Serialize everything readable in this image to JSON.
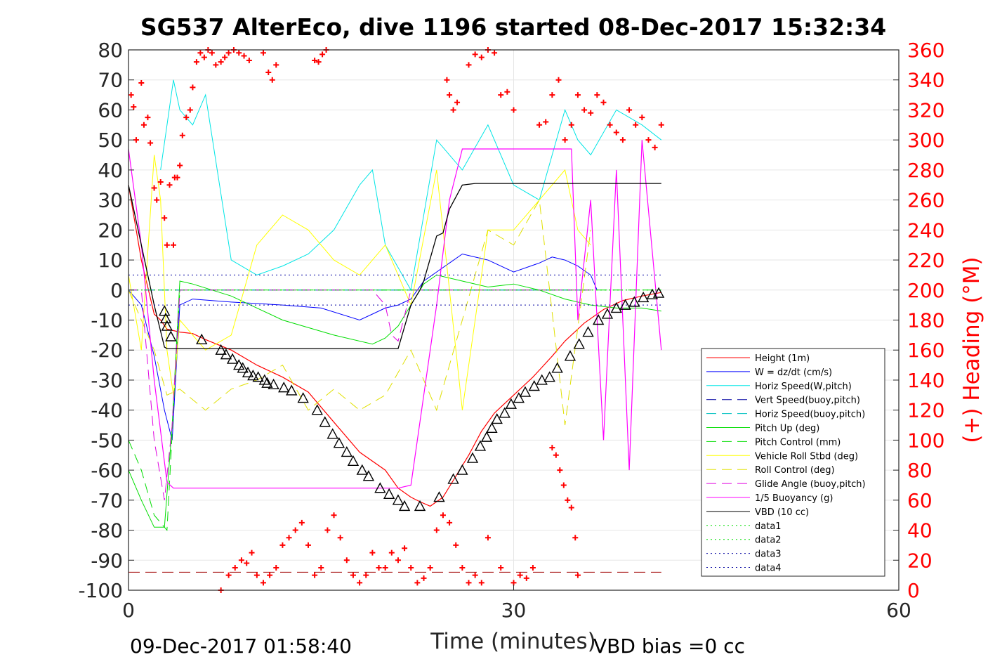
{
  "colors": {
    "height": "#ff0000",
    "w": "#0000ff",
    "horiz_w": "#00e5e5",
    "vert_buoy": "#0000a0",
    "horiz_buoy": "#00c0c0",
    "pitch": "#00dd00",
    "pitch_ctrl": "#00dd00",
    "roll": "#ffff00",
    "roll_ctrl": "#e0e000",
    "glide": "#e000e0",
    "buoy": "#ff00ff",
    "vbd": "#000000",
    "heading": "#ff0000",
    "dashed_red": "#a00000"
  },
  "chart_data": {
    "type": "line",
    "title": "SG537 AlterEco, dive 1196 started 08-Dec-2017 15:32:34",
    "xlabel": "Time (minutes)",
    "ylabel_right": "(+) Heading (°M)",
    "xlim": [
      0,
      60
    ],
    "ylim": [
      -100,
      80
    ],
    "ylim_right": [
      0,
      360
    ],
    "x_ticks": [
      "0",
      "30",
      "60"
    ],
    "y_ticks": [
      "80",
      "70",
      "60",
      "50",
      "40",
      "30",
      "20",
      "10",
      "0",
      "-10",
      "-20",
      "-30",
      "-40",
      "-50",
      "-60",
      "-70",
      "-80",
      "-90",
      "-100"
    ],
    "y_ticks_right": [
      "360",
      "340",
      "320",
      "300",
      "280",
      "260",
      "240",
      "220",
      "200",
      "180",
      "160",
      "140",
      "120",
      "100",
      "80",
      "60",
      "40",
      "20",
      "0"
    ],
    "grid": true,
    "legend_position": "bottom-right",
    "footer_left": "09-Dec-2017 01:58:40",
    "footer_right": "VBD bias =0 cc",
    "legend": [
      "Height (1m)",
      "W = dz/dt (cm/s)",
      "Horiz Speed(W,pitch)",
      "Vert Speed(buoy,pitch)",
      "Horiz Speed(buoy,pitch)",
      "Pitch Up (deg)",
      "Pitch Control (mm)",
      "Vehicle Roll Stbd (deg)",
      "Roll Control (deg)",
      "Glide Angle (buoy,pitch)",
      "1/5 Buoyancy (g)",
      "VBD (10 cc)",
      "data1",
      "data2",
      "data3",
      "data4"
    ],
    "series": [
      {
        "name": "Height (1m)",
        "x": [
          0,
          1,
          2,
          2.5,
          3,
          3.5,
          4,
          5,
          6,
          8,
          10,
          12,
          14,
          16,
          18,
          20,
          21,
          22,
          22.7,
          23.5,
          24.5,
          25.5,
          26.5,
          27.5,
          28.5,
          30,
          31.5,
          33,
          34,
          35.5,
          37,
          38.5,
          40,
          41.5
        ],
        "values": [
          35,
          10,
          -8,
          -10,
          -13,
          -13.5,
          -14,
          -14.5,
          -16.5,
          -20,
          -25,
          -29,
          -34,
          -44,
          -54,
          -60,
          -66,
          -69,
          -70.5,
          -72,
          -69,
          -62,
          -55,
          -47,
          -41,
          -35,
          -29,
          -22,
          -17,
          -11,
          -6.5,
          -3.5,
          -2,
          -0.8
        ]
      },
      {
        "name": "W = dz/dt (cm/s)",
        "x": [
          0,
          1,
          2,
          2.8,
          3.4,
          4,
          5,
          8,
          12,
          15,
          18,
          19,
          20,
          21,
          22,
          23,
          24,
          25,
          26,
          28,
          30,
          32,
          33,
          34,
          35,
          36,
          36.5
        ],
        "values": [
          0,
          -5,
          -22,
          -40,
          -50,
          -5,
          -3,
          -4,
          -5,
          -6,
          -10,
          -8,
          -6,
          -5,
          -3,
          3,
          6,
          9,
          12,
          10,
          6,
          9,
          11,
          10,
          8,
          5,
          0
        ]
      },
      {
        "name": "Horiz Speed(W,pitch)",
        "x": [
          2.5,
          3.5,
          4,
          5,
          6,
          8,
          10,
          12,
          14,
          16,
          18,
          19,
          20,
          22,
          24,
          26,
          28,
          30,
          32,
          34,
          35,
          36,
          38,
          40,
          41.5
        ],
        "values": [
          40,
          70,
          60,
          55,
          65,
          10,
          5,
          8,
          12,
          20,
          35,
          40,
          15,
          0,
          50,
          40,
          55,
          35,
          30,
          60,
          50,
          45,
          60,
          55,
          50
        ]
      },
      {
        "name": "Vert Speed(buoy,pitch)",
        "x": [
          0,
          3.5,
          4,
          22,
          23,
          36
        ],
        "values": [
          0,
          0,
          0,
          0,
          0,
          0
        ]
      },
      {
        "name": "Horiz Speed(buoy,pitch)",
        "x": [
          0,
          3.5,
          4,
          22,
          23,
          36
        ],
        "values": [
          0,
          0,
          0,
          0,
          0,
          0
        ]
      },
      {
        "name": "Pitch Up (deg)",
        "x": [
          0,
          1,
          2,
          2.8,
          3.4,
          4,
          5,
          8,
          12,
          16,
          19,
          20,
          21,
          22,
          23,
          24,
          26,
          28,
          30,
          32,
          34,
          36,
          38,
          40,
          41.5
        ],
        "values": [
          -60,
          -70,
          -79,
          -79,
          -45,
          3,
          2,
          -2,
          -10,
          -15,
          -18,
          -16,
          -12,
          -5,
          2,
          5,
          3,
          1,
          2,
          0,
          -3,
          -5,
          -6,
          -6,
          -7
        ]
      },
      {
        "name": "Pitch Control (mm)",
        "x": [
          0,
          1,
          2,
          3,
          4,
          20,
          22,
          24,
          36,
          38,
          41.5
        ],
        "values": [
          -50,
          -60,
          -75,
          -80,
          0,
          0,
          0,
          0,
          0,
          0,
          0
        ]
      },
      {
        "name": "Vehicle Roll Stbd (deg)",
        "x": [
          0,
          1,
          2,
          2.5,
          3,
          3.5,
          4,
          6,
          8,
          10,
          12,
          14,
          16,
          18,
          20,
          22,
          24,
          26,
          28,
          30,
          32,
          34,
          35,
          36
        ],
        "values": [
          5,
          -20,
          45,
          30,
          -20,
          -35,
          -10,
          -20,
          -15,
          15,
          25,
          20,
          10,
          5,
          15,
          -5,
          40,
          -40,
          20,
          20,
          30,
          40,
          20,
          15
        ]
      },
      {
        "name": "Roll Control (deg)",
        "x": [
          0,
          2,
          3,
          4,
          6,
          8,
          10,
          12,
          14,
          16,
          18,
          20,
          22,
          24,
          26,
          28,
          30,
          32,
          34,
          36
        ],
        "values": [
          0,
          -20,
          -35,
          -33,
          -40,
          -33,
          -30,
          -25,
          -40,
          -33,
          -40,
          -35,
          -20,
          -40,
          -10,
          20,
          15,
          30,
          -45,
          20
        ]
      },
      {
        "name": "Glide Angle (buoy,pitch)",
        "x": [
          0,
          1,
          2,
          2.8,
          3.4,
          4,
          8,
          12,
          16,
          19,
          20,
          20.5,
          21,
          22,
          23,
          26,
          30,
          34,
          36
        ],
        "values": [
          0,
          0,
          -50,
          -70,
          -45,
          0,
          0,
          0,
          0,
          0,
          -5,
          -15,
          -17,
          0,
          0,
          0,
          0,
          0,
          0
        ]
      },
      {
        "name": "1/5 Buoyancy (g)",
        "x": [
          0,
          1,
          2,
          3,
          3.5,
          10,
          15,
          20,
          21,
          22,
          23,
          24,
          25,
          26,
          28,
          30,
          32,
          34.5,
          35,
          36,
          37,
          38,
          39,
          40,
          41.5
        ],
        "values": [
          47,
          15,
          -30,
          -64,
          -66,
          -66,
          -66,
          -66,
          -66,
          -65,
          -35,
          -5,
          30,
          47,
          47,
          47,
          47,
          47,
          -10,
          30,
          -50,
          40,
          -60,
          50,
          -20
        ]
      },
      {
        "name": "VBD (10 cc)",
        "x": [
          0,
          1,
          2,
          2.8,
          3,
          10,
          16,
          20,
          21,
          22,
          22.7,
          23,
          24,
          24.5,
          25,
          26,
          27,
          30,
          35,
          41.5
        ],
        "values": [
          35,
          15,
          -5,
          -19,
          -19.5,
          -19.5,
          -19.5,
          -19.5,
          -19.5,
          -5,
          0,
          3,
          18,
          19,
          27,
          35,
          35.5,
          35.5,
          35.5,
          35.5
        ]
      },
      {
        "name": "data1",
        "x": [
          0,
          41.5
        ],
        "values": [
          0,
          0
        ]
      },
      {
        "name": "data2",
        "x": [
          0,
          41.5
        ],
        "values": [
          0,
          0
        ]
      },
      {
        "name": "data3",
        "x": [
          0,
          41.5
        ],
        "values": [
          5,
          5
        ]
      },
      {
        "name": "data4",
        "x": [
          0,
          41.5
        ],
        "values": [
          -5,
          -5
        ]
      },
      {
        "name": "dashed_red",
        "x": [
          0,
          41.5
        ],
        "values": [
          -94,
          -94
        ]
      }
    ],
    "vbd_markers": {
      "x": [
        2.8,
        2.9,
        3.0,
        3.3,
        5.7,
        7.2,
        7.6,
        8.1,
        8.6,
        8.9,
        9.3,
        9.7,
        10.1,
        10.6,
        10.8,
        11.3,
        12.1,
        12.7,
        13.6,
        14.7,
        15.3,
        15.9,
        16.4,
        17.0,
        17.5,
        18.2,
        18.7,
        19.6,
        20.3,
        21.0,
        21.5,
        22.7,
        24.2,
        25.3,
        26.0,
        26.8,
        27.4,
        27.9,
        28.3,
        28.7,
        29.3,
        29.8,
        30.4,
        30.9,
        31.6,
        32.2,
        32.8,
        33.4,
        34.4,
        35.1,
        35.8,
        36.6,
        37.3,
        38.0,
        38.7,
        39.4,
        40.1,
        40.8,
        41.3
      ],
      "values": [
        -7,
        -9.5,
        -12,
        -15.5,
        -16.5,
        -20,
        -21.5,
        -23,
        -25,
        -26,
        -27.5,
        -28.5,
        -29,
        -30,
        -31,
        -31.5,
        -32.5,
        -33.5,
        -36,
        -40,
        -44,
        -48,
        -51,
        -54,
        -57,
        -60,
        -62,
        -66,
        -68,
        -70,
        -72,
        -72,
        -69,
        -63,
        -60,
        -56,
        -52,
        -49,
        -46,
        -43,
        -41,
        -38,
        -36,
        -34,
        -32,
        -30,
        -29,
        -26,
        -22,
        -18,
        -14,
        -10,
        -8,
        -6,
        -5,
        -4,
        -2.5,
        -1.5,
        -1
      ]
    },
    "heading_points": {
      "x": [
        0.2,
        0.4,
        0.6,
        1,
        1.2,
        1.5,
        1.7,
        2.0,
        2.2,
        2.5,
        2.8,
        3.0,
        3.2,
        3.5,
        3.6,
        3.8,
        4.0,
        4.2,
        4.5,
        4.8,
        5.0,
        5.3,
        5.6,
        5.9,
        6.2,
        6.5,
        6.8,
        7.2,
        7.5,
        7.8,
        8.2,
        8.6,
        9.0,
        9.4,
        10.5,
        10.9,
        11.2,
        11.5,
        14.5,
        14.8,
        15.1,
        15.4,
        24.8,
        25.0,
        25.3,
        25.6,
        26.5,
        27.0,
        27.5,
        28.0,
        28.5,
        29.0,
        29.5,
        30.0,
        32.0,
        32.5,
        33.0,
        33.5,
        34.0,
        34.5,
        35.0,
        35.5,
        36.0,
        36.5,
        37.0,
        37.5,
        38.0,
        38.5,
        39.0,
        39.5,
        40.0,
        40.5,
        41.0,
        41.5,
        7.2,
        7.8,
        8.3,
        8.8,
        9.2,
        9.6,
        10.0,
        10.5,
        11.0,
        11.5,
        12.0,
        12.5,
        13.0,
        13.5,
        14.0,
        14.5,
        15.0,
        15.5,
        16.0,
        16.5,
        17.0,
        17.5,
        18.0,
        18.5,
        19.0,
        19.5,
        20.0,
        20.5,
        21.0,
        21.5,
        22.0,
        22.5,
        23.0,
        23.5,
        24.0,
        24.5,
        25.0,
        25.5,
        26.0,
        26.5,
        27.0,
        27.5,
        28.0,
        29.0,
        30.0,
        30.5,
        31.0,
        31.5,
        33.0,
        33.3,
        33.6,
        33.9,
        34.2,
        34.5,
        34.8,
        35.0
      ],
      "values": [
        330,
        322,
        300,
        338,
        310,
        315,
        298,
        268,
        260,
        272,
        248,
        230,
        270,
        230,
        275,
        275,
        283,
        303,
        315,
        320,
        335,
        352,
        358,
        355,
        360,
        358,
        350,
        352,
        355,
        358,
        360,
        358,
        356,
        353,
        358,
        345,
        340,
        350,
        353,
        352,
        357,
        360,
        340,
        330,
        320,
        325,
        350,
        357,
        355,
        360,
        358,
        330,
        332,
        320,
        310,
        312,
        330,
        340,
        300,
        310,
        330,
        320,
        318,
        330,
        325,
        310,
        305,
        300,
        320,
        310,
        315,
        300,
        295,
        310,
        0,
        10,
        15,
        20,
        18,
        25,
        10,
        5,
        10,
        15,
        30,
        35,
        40,
        45,
        30,
        10,
        15,
        40,
        50,
        35,
        20,
        10,
        5,
        10,
        25,
        15,
        15,
        25,
        20,
        28,
        15,
        5,
        8,
        15,
        40,
        50,
        45,
        30,
        15,
        5,
        10,
        5,
        35,
        15,
        5,
        10,
        8,
        15,
        95,
        90,
        80,
        70,
        60,
        55,
        35,
        10
      ]
    }
  }
}
